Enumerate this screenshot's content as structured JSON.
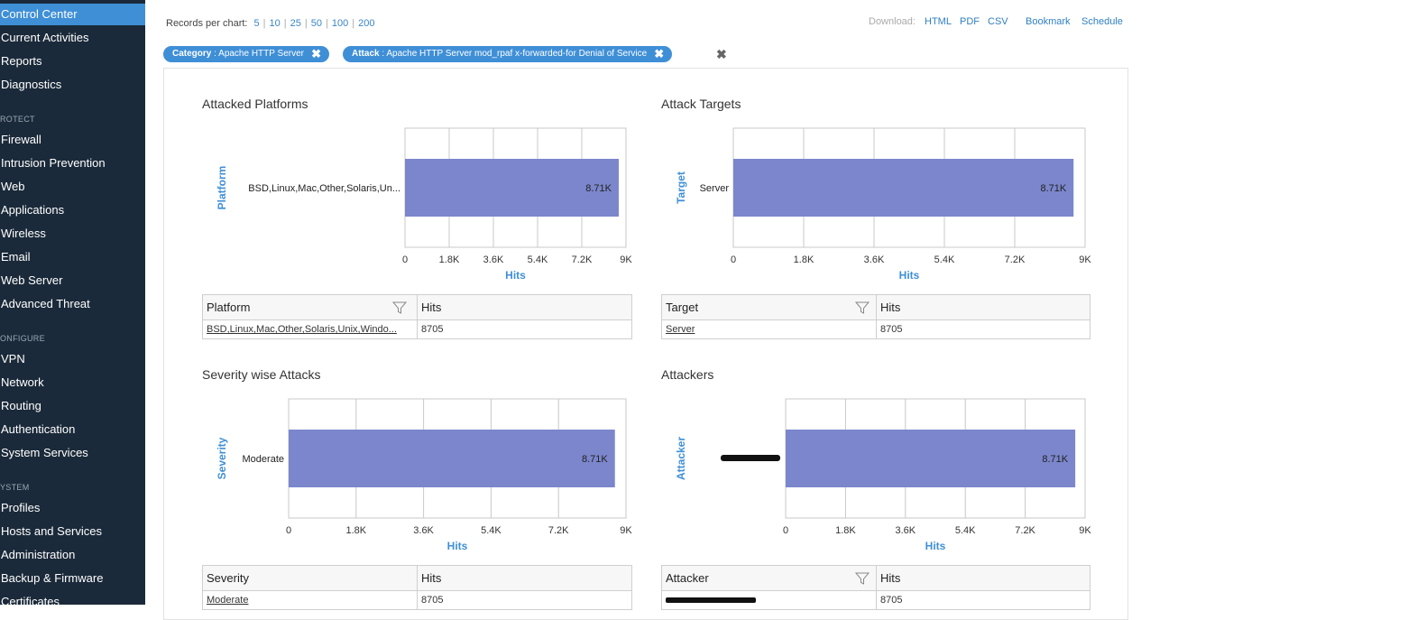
{
  "sidebar": {
    "items": [
      {
        "label": "Control Center",
        "active": true
      },
      {
        "label": "Current Activities"
      },
      {
        "label": "Reports"
      },
      {
        "label": "Diagnostics"
      },
      {
        "label": "Firewall"
      },
      {
        "label": "Intrusion Prevention"
      },
      {
        "label": "Web"
      },
      {
        "label": "Applications"
      },
      {
        "label": "Wireless"
      },
      {
        "label": "Email"
      },
      {
        "label": "Web Server"
      },
      {
        "label": "Advanced Threat"
      },
      {
        "label": "VPN"
      },
      {
        "label": "Network"
      },
      {
        "label": "Routing"
      },
      {
        "label": "Authentication"
      },
      {
        "label": "System Services"
      },
      {
        "label": "Profiles"
      },
      {
        "label": "Hosts and Services"
      },
      {
        "label": "Administration"
      },
      {
        "label": "Backup & Firmware"
      },
      {
        "label": "Certificates"
      }
    ],
    "sections": [
      "ROTECT",
      "ONFIGURE",
      "YSTEM"
    ]
  },
  "toolbar": {
    "records_label": "Records per chart:",
    "records_options": [
      "5",
      "10",
      "25",
      "50",
      "100",
      "200"
    ],
    "download_label": "Download:",
    "html": "HTML",
    "pdf": "PDF",
    "csv": "CSV",
    "bookmark": "Bookmark",
    "schedule": "Schedule"
  },
  "filters": [
    {
      "key": "Category",
      "value": " : Apache HTTP Server"
    },
    {
      "key": "Attack",
      "value": " : Apache HTTP Server mod_rpaf x-forwarded-for Denial of Service"
    }
  ],
  "panels": [
    {
      "title": "Attacked Platforms",
      "table": {
        "col1": "Platform",
        "col2": "Hits",
        "cell1": "BSD,Linux,Mac,Other,Solaris,Unix,Windo...",
        "cell2": "8705"
      }
    },
    {
      "title": "Attack Targets",
      "table": {
        "col1": "Target",
        "col2": "Hits",
        "cell1": "Server",
        "cell2": "8705"
      }
    },
    {
      "title": "Severity wise Attacks",
      "table": {
        "col1": "Severity",
        "col2": "Hits",
        "cell1": "Moderate",
        "cell2": "8705"
      }
    },
    {
      "title": "Attackers",
      "table": {
        "col1": "Attacker",
        "col2": "Hits",
        "cell1": "",
        "cell2": "8705"
      }
    }
  ],
  "chart_data": [
    {
      "type": "bar",
      "orientation": "horizontal",
      "categories": [
        "BSD,Linux,Mac,Other,Solaris,Un..."
      ],
      "values": [
        8705
      ],
      "data_labels": [
        "8.71K"
      ],
      "xlabel": "Hits",
      "ylabel": "Platform",
      "xlim": [
        0,
        9000
      ],
      "ticks": [
        "0",
        "1.8K",
        "3.6K",
        "5.4K",
        "7.2K",
        "9K"
      ],
      "grid": true,
      "color": "#7b86cc"
    },
    {
      "type": "bar",
      "orientation": "horizontal",
      "categories": [
        "Server"
      ],
      "values": [
        8705
      ],
      "data_labels": [
        "8.71K"
      ],
      "xlabel": "Hits",
      "ylabel": "Target",
      "xlim": [
        0,
        9000
      ],
      "ticks": [
        "0",
        "1.8K",
        "3.6K",
        "5.4K",
        "7.2K",
        "9K"
      ],
      "grid": true,
      "color": "#7b86cc"
    },
    {
      "type": "bar",
      "orientation": "horizontal",
      "categories": [
        "Moderate"
      ],
      "values": [
        8705
      ],
      "data_labels": [
        "8.71K"
      ],
      "xlabel": "Hits",
      "ylabel": "Severity",
      "xlim": [
        0,
        9000
      ],
      "ticks": [
        "0",
        "1.8K",
        "3.6K",
        "5.4K",
        "7.2K",
        "9K"
      ],
      "grid": true,
      "color": "#7b86cc"
    },
    {
      "type": "bar",
      "orientation": "horizontal",
      "categories": [
        ""
      ],
      "values": [
        8705
      ],
      "data_labels": [
        "8.71K"
      ],
      "xlabel": "Hits",
      "ylabel": "Attacker",
      "xlim": [
        0,
        9000
      ],
      "ticks": [
        "0",
        "1.8K",
        "3.6K",
        "5.4K",
        "7.2K",
        "9K"
      ],
      "grid": true,
      "color": "#7b86cc"
    }
  ]
}
